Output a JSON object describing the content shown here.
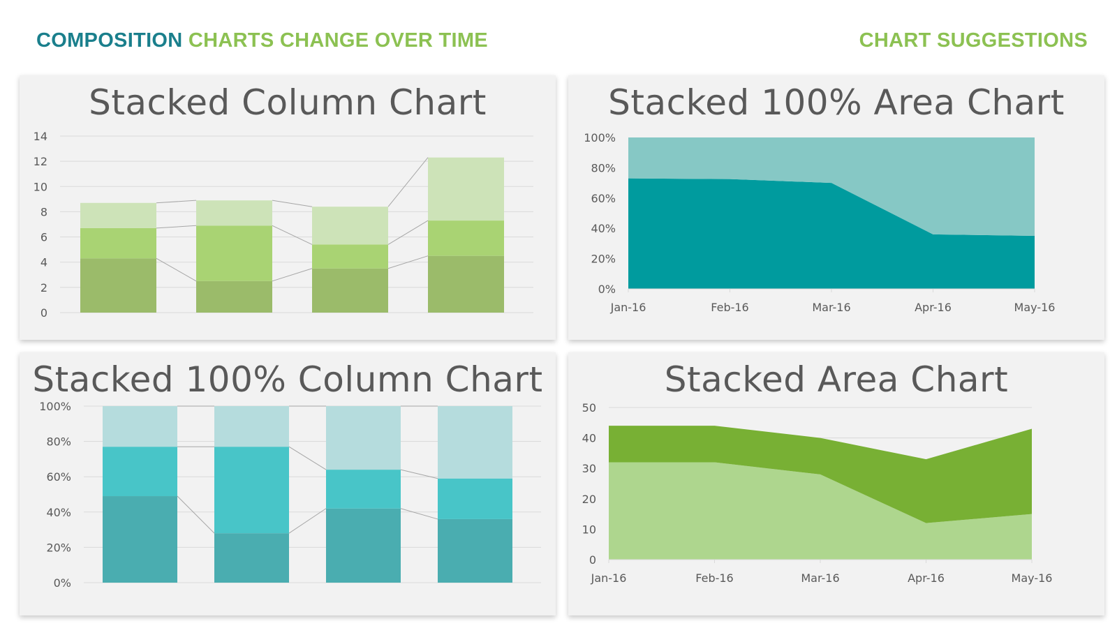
{
  "header": {
    "title_part1": "COMPOSITION",
    "title_part2": "CHARTS CHANGE OVER TIME",
    "right_label": "CHART SUGGESTIONS"
  },
  "colors": {
    "header_teal": "#1a7f8c",
    "header_green": "#8cc152",
    "panel_bg": "#f2f2f2",
    "gridline": "#d9d9d9",
    "connector": "#a6a6a6"
  },
  "chart_data": [
    {
      "type": "bar",
      "stacked": true,
      "title": "Stacked Column Chart",
      "categories": [
        "",
        "",
        "",
        ""
      ],
      "series": [
        {
          "values": [
            4.3,
            2.5,
            3.5,
            4.5
          ],
          "color": "#9bbb6a"
        },
        {
          "values": [
            2.4,
            4.4,
            1.9,
            2.8
          ],
          "color": "#a9d373"
        },
        {
          "values": [
            2.0,
            2.0,
            3.0,
            5.0
          ],
          "color": "#cde3b8"
        }
      ],
      "ylim": [
        0,
        14
      ],
      "yticks": [
        0,
        2,
        4,
        6,
        8,
        10,
        12,
        14
      ],
      "ytick_labels": [
        "0",
        "2",
        "4",
        "6",
        "8",
        "10",
        "12",
        "14"
      ],
      "grid": true,
      "connector_lines": true,
      "legend": "none"
    },
    {
      "type": "area",
      "stacked": true,
      "percent": true,
      "title": "Stacked 100% Area Chart",
      "x": [
        "Jan-16",
        "Feb-16",
        "Mar-16",
        "Apr-16",
        "May-16"
      ],
      "series": [
        {
          "values": [
            73,
            72.5,
            70,
            36,
            35
          ],
          "color": "#009b9e"
        },
        {
          "values": [
            27,
            27.5,
            30,
            64,
            65
          ],
          "color": "#86c8c5"
        }
      ],
      "ylim": [
        0,
        100
      ],
      "yticks": [
        0,
        20,
        40,
        60,
        80,
        100
      ],
      "ytick_labels": [
        "0%",
        "20%",
        "40%",
        "60%",
        "80%",
        "100%"
      ],
      "grid": false,
      "legend": "none"
    },
    {
      "type": "bar",
      "stacked": true,
      "percent": true,
      "title": "Stacked 100% Column Chart",
      "categories": [
        "",
        "",
        "",
        ""
      ],
      "series": [
        {
          "values": [
            49,
            28,
            42,
            36
          ],
          "color": "#4aadb0"
        },
        {
          "values": [
            28,
            49,
            22,
            23
          ],
          "color": "#48c5c8"
        },
        {
          "values": [
            23,
            23,
            36,
            41
          ],
          "color": "#b5dcdd"
        }
      ],
      "ylim": [
        0,
        100
      ],
      "yticks": [
        0,
        20,
        40,
        60,
        80,
        100
      ],
      "ytick_labels": [
        "0%",
        "20%",
        "40%",
        "60%",
        "80%",
        "100%"
      ],
      "grid": true,
      "connector_lines": true,
      "legend": "none"
    },
    {
      "type": "area",
      "stacked": true,
      "title": "Stacked Area Chart",
      "x": [
        "Jan-16",
        "Feb-16",
        "Mar-16",
        "Apr-16",
        "May-16"
      ],
      "series": [
        {
          "values": [
            32,
            32,
            28,
            12,
            15
          ],
          "color": "#aed68e"
        },
        {
          "values": [
            12,
            12,
            12,
            21,
            28
          ],
          "color": "#78b034"
        }
      ],
      "ylim": [
        0,
        50
      ],
      "yticks": [
        0,
        10,
        20,
        30,
        40,
        50
      ],
      "ytick_labels": [
        "0",
        "10",
        "20",
        "30",
        "40",
        "50"
      ],
      "grid": true,
      "legend": "none"
    }
  ]
}
